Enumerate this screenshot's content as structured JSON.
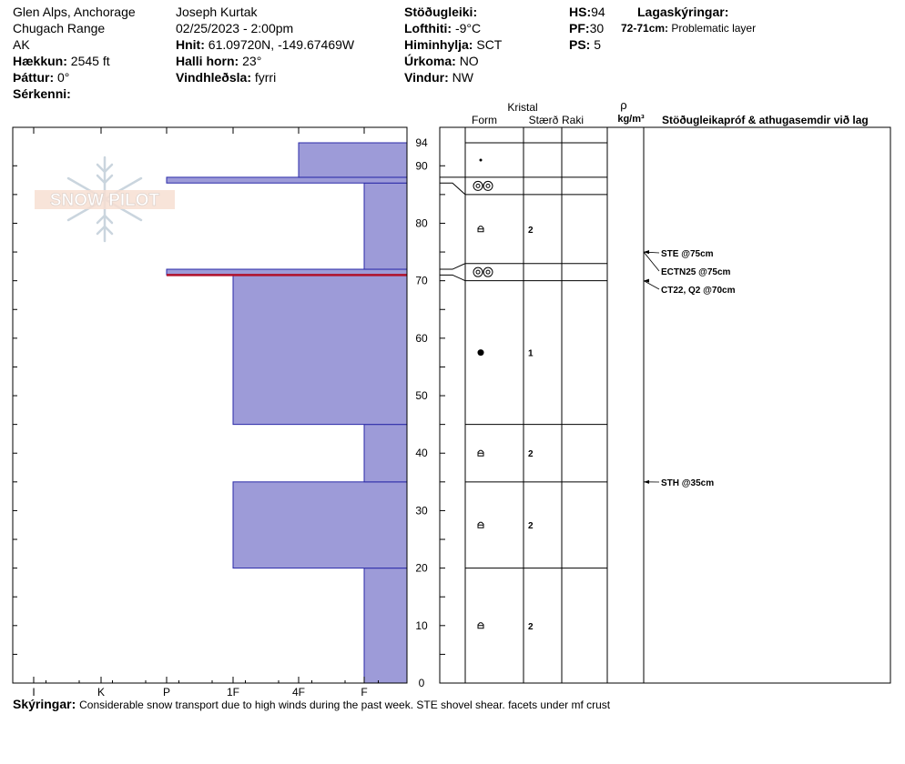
{
  "header": {
    "location": "Glen Alps, Anchorage",
    "range": "Chugach Range",
    "state": "AK",
    "elevation_label": "Hækkun:",
    "elevation": "2545 ft",
    "aspect_label": "Þáttur:",
    "aspect": "0°",
    "features_label": "Sérkenni:",
    "features": "",
    "observer": "Joseph Kurtak",
    "datetime": "02/25/2023 - 2:00pm",
    "coords_label": "Hnit:",
    "coords": "61.09720N, -149.67469W",
    "slope_label": "Halli horn:",
    "slope": "23°",
    "windload_label": "Vindhleðsla:",
    "windload": "fyrri",
    "stability_label": "Stöðugleiki:",
    "stability": "",
    "airtemp_label": "Lofthiti:",
    "airtemp": "-9°C",
    "sky_label": "Himinhylja:",
    "sky": "SCT",
    "precip_label": "Úrkoma:",
    "precip": "NO",
    "wind_label": "Vindur:",
    "wind": "NW",
    "hs_label": "HS:",
    "hs": "94",
    "pf_label": "PF:",
    "pf": "30",
    "ps_label": "PS:",
    "ps": "5",
    "layers_title": "Lagaskýringar:",
    "layer_note_range": "72-71cm:",
    "layer_note_text": "Problematic layer"
  },
  "columns": {
    "crystal": "Kristal",
    "form": "Form",
    "size": "Stærð",
    "moisture": "Raki",
    "rho": "ρ",
    "density_unit": "kg/m³",
    "stability": "Stöðugleikapróf & athugasemdir við lag"
  },
  "logo_text": "SNOW PILOT",
  "chart_data": {
    "type": "bar",
    "ylim": [
      0,
      94
    ],
    "y_ticks": [
      0,
      10,
      20,
      30,
      40,
      50,
      60,
      70,
      80,
      90,
      94
    ],
    "x_ticks": [
      "I",
      "K",
      "P",
      "1F",
      "4F",
      "F"
    ],
    "hardness_layers": [
      {
        "bottom": 0,
        "top": 20,
        "hardness": "F"
      },
      {
        "bottom": 20,
        "top": 35,
        "hardness": "1F"
      },
      {
        "bottom": 35,
        "top": 45,
        "hardness": "F"
      },
      {
        "bottom": 45,
        "top": 71,
        "hardness": "1F"
      },
      {
        "bottom": 71,
        "top": 72,
        "hardness": "P",
        "problematic": true
      },
      {
        "bottom": 72,
        "top": 87,
        "hardness": "F"
      },
      {
        "bottom": 87,
        "top": 88,
        "hardness": "P"
      },
      {
        "bottom": 88,
        "top": 94,
        "hardness": "4F"
      }
    ],
    "stratigraphy": [
      {
        "top": 94,
        "bottom": 88,
        "form": "small-dot",
        "size": ""
      },
      {
        "top": 88,
        "bottom": 85,
        "form": "melt-freeze",
        "size": ""
      },
      {
        "top": 85,
        "bottom": 73,
        "form": "facet",
        "size": "2"
      },
      {
        "top": 73,
        "bottom": 70,
        "form": "melt-freeze",
        "size": ""
      },
      {
        "top": 70,
        "bottom": 45,
        "form": "dot",
        "size": "1"
      },
      {
        "top": 45,
        "bottom": 35,
        "form": "facet",
        "size": "2"
      },
      {
        "top": 35,
        "bottom": 20,
        "form": "facet",
        "size": "2"
      },
      {
        "top": 20,
        "bottom": 0,
        "form": "facet",
        "size": "2"
      }
    ],
    "tests": [
      {
        "depth": 75,
        "label": "STE @75cm"
      },
      {
        "depth": 75,
        "label": "ECTN25 @75cm"
      },
      {
        "depth": 70,
        "label": "CT22, Q2 @70cm"
      },
      {
        "depth": 35,
        "label": "STH @35cm"
      }
    ]
  },
  "footer": {
    "label": "Skýringar:",
    "text": "Considerable snow transport due to high winds during the past week. STE shovel shear. facets under mf crust"
  }
}
